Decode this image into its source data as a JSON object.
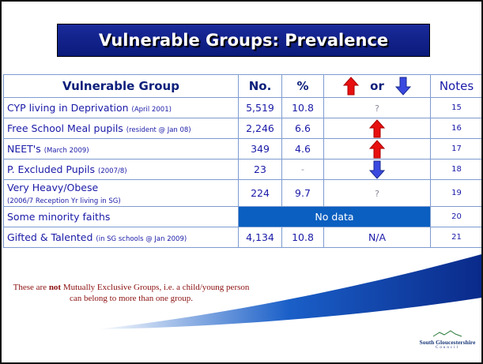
{
  "title": "Vulnerable Groups: Prevalence",
  "table": {
    "header": {
      "group": "Vulnerable Group",
      "number": "No.",
      "percent": "%",
      "trend": "or",
      "notes": "Notes"
    },
    "rows": [
      {
        "group": "CYP living in Deprivation",
        "detail": "(April 2001)",
        "number": "5,519",
        "percent": "10.8",
        "trend": "?",
        "notes": "15"
      },
      {
        "group": "Free School Meal pupils",
        "detail": "(resident @ Jan 08)",
        "number": "2,246",
        "percent": "6.6",
        "arrow": "up",
        "notes": "16"
      },
      {
        "group": "NEET's",
        "detail": "(March 2009)",
        "number": "349",
        "percent": "4.6",
        "arrow": "up",
        "notes": "17"
      },
      {
        "group": "P. Excluded Pupils",
        "detail": "(2007/8)",
        "number": "23",
        "percent": "-",
        "arrow": "down",
        "notes": "18"
      },
      {
        "group": "Very Heavy/Obese",
        "detail": "(2006/7 Reception Yr living in SG)",
        "detail_newline": true,
        "number": "224",
        "percent": "9.7",
        "trend": "?",
        "notes": "19"
      },
      {
        "group": "Some minority faiths",
        "merged": "No data",
        "notes": "20"
      },
      {
        "group": "Gifted & Talented",
        "detail": "(in SG schools @ Jan 2009)",
        "number": "4,134",
        "percent": "10.8",
        "trend": "N/A",
        "notes": "21"
      }
    ]
  },
  "footnote": {
    "before": "These are ",
    "bold": "not",
    "after": " Mutually Exclusive Groups, i.e. a child/young person can belong to more than one group."
  },
  "logo": {
    "name": "South Gloucestershire",
    "sub": "Council"
  }
}
